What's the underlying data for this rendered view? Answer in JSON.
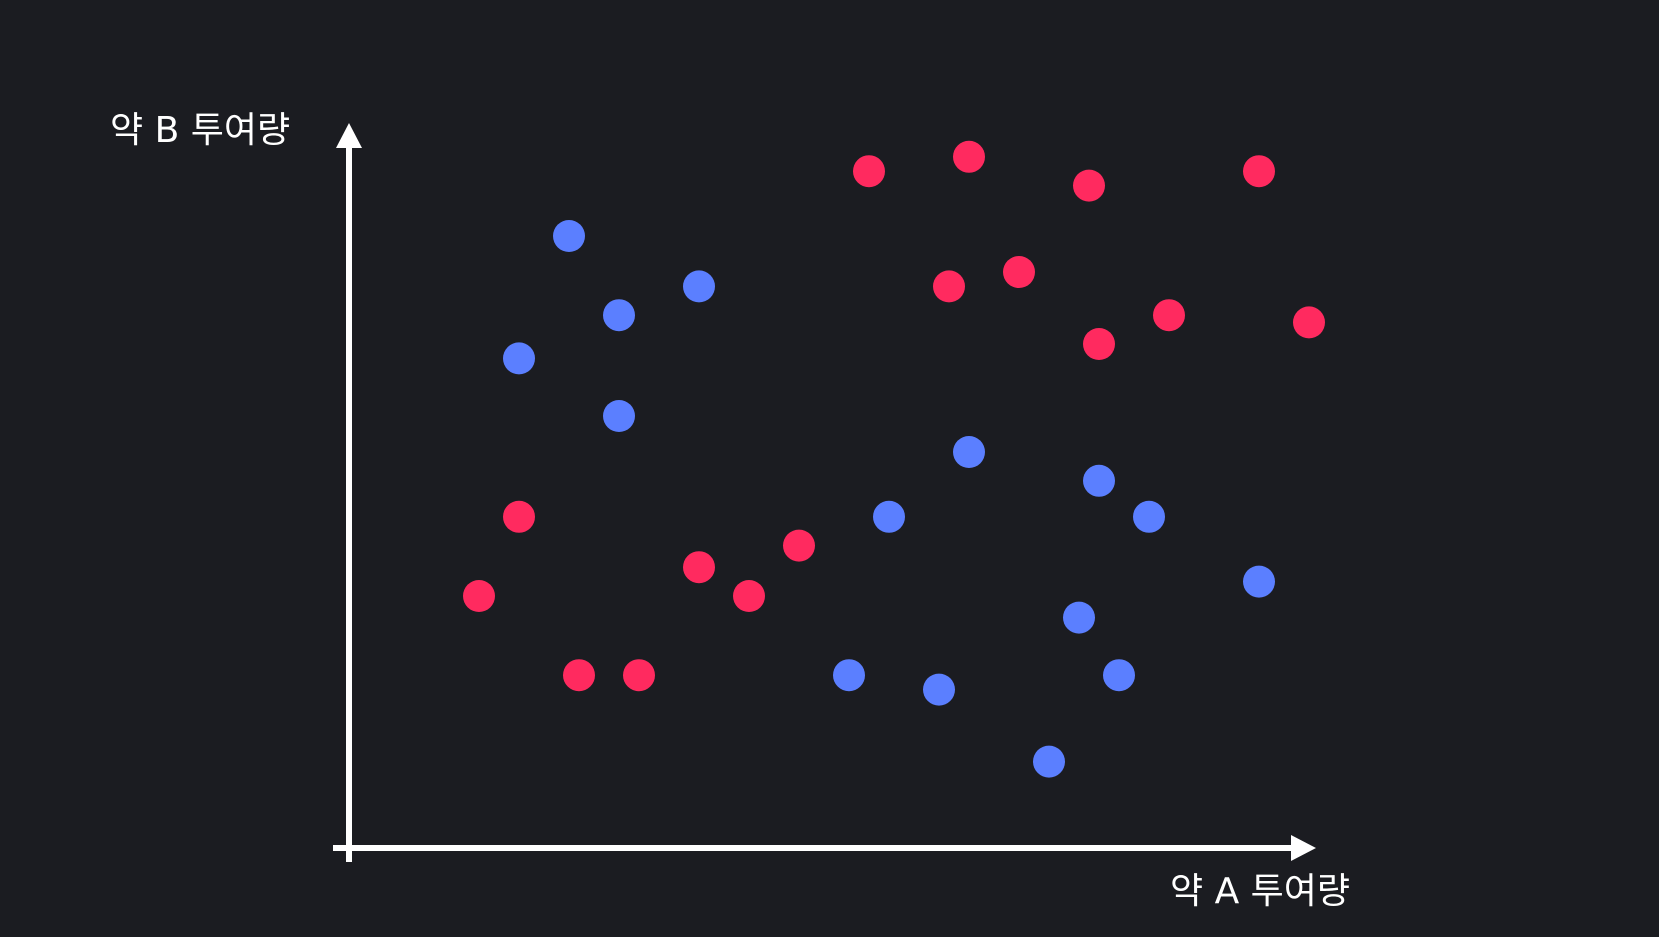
{
  "chart_data": {
    "type": "scatter",
    "xlabel": "약 A 투여량",
    "ylabel": "약 B 투여량",
    "xlim": [
      0,
      100
    ],
    "ylim": [
      0,
      100
    ],
    "grid": false,
    "axis_ticks": false,
    "series": [
      {
        "color": "#ff2a5f",
        "points": [
          [
            13,
            35
          ],
          [
            17,
            46
          ],
          [
            23,
            24
          ],
          [
            29,
            24
          ],
          [
            35,
            39
          ],
          [
            40,
            35
          ],
          [
            45,
            42
          ],
          [
            52,
            94
          ],
          [
            62,
            96
          ],
          [
            60,
            78
          ],
          [
            67,
            80
          ],
          [
            74,
            92
          ],
          [
            75,
            70
          ],
          [
            82,
            74
          ],
          [
            91,
            94
          ],
          [
            96,
            73
          ]
        ]
      },
      {
        "color": "#5b7fff",
        "points": [
          [
            17,
            68
          ],
          [
            22,
            85
          ],
          [
            27,
            74
          ],
          [
            27,
            60
          ],
          [
            35,
            78
          ],
          [
            50,
            24
          ],
          [
            54,
            46
          ],
          [
            59,
            22
          ],
          [
            62,
            55
          ],
          [
            70,
            12
          ],
          [
            73,
            32
          ],
          [
            75,
            51
          ],
          [
            77,
            24
          ],
          [
            80,
            46
          ],
          [
            91,
            37
          ]
        ]
      }
    ]
  }
}
